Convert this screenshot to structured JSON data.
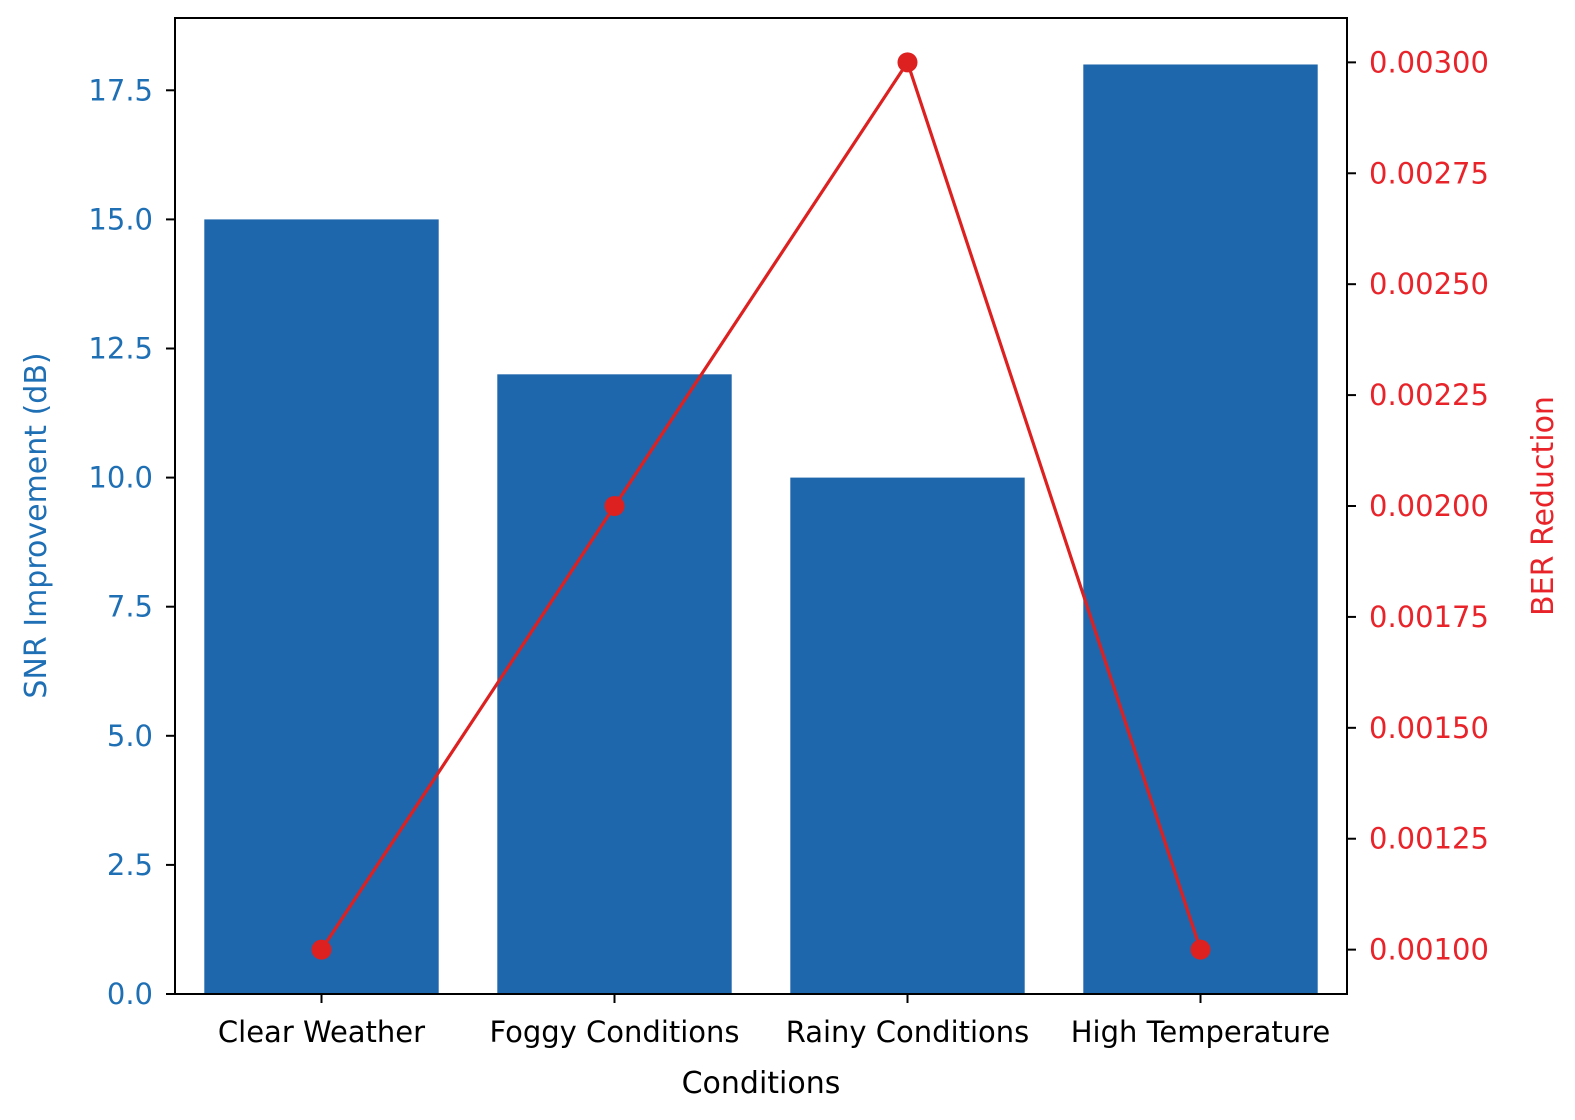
{
  "colors": {
    "bar": "#1f67ad",
    "line": "#dd2020",
    "left_axis_text": "#1f6fb5",
    "right_axis_text": "#e8242a",
    "axis": "#000000"
  },
  "chart_data": {
    "type": "bar",
    "title": "",
    "xlabel": "Conditions",
    "ylabel": "SNR Improvement (dB)",
    "y2label": "BER Reduction",
    "categories": [
      "Clear Weather",
      "Foggy Conditions",
      "Rainy Conditions",
      "High Temperature"
    ],
    "series": [
      {
        "kind": "bar",
        "axis": "left",
        "values": [
          15,
          12,
          10,
          18
        ]
      },
      {
        "kind": "line",
        "axis": "right",
        "marker": "circle",
        "values": [
          0.001,
          0.002,
          0.003,
          0.001
        ]
      }
    ],
    "ylim": [
      0,
      18.9
    ],
    "y2lim": [
      0.0009,
      0.0031
    ],
    "yticks": [
      "0.0",
      "2.5",
      "5.0",
      "7.5",
      "10.0",
      "12.5",
      "15.0",
      "17.5"
    ],
    "ytick_values": [
      0,
      2.5,
      5,
      7.5,
      10,
      12.5,
      15,
      17.5
    ],
    "y2ticks": [
      "0.00100",
      "0.00125",
      "0.00150",
      "0.00175",
      "0.00200",
      "0.00225",
      "0.00250",
      "0.00275",
      "0.00300"
    ],
    "y2tick_values": [
      0.001,
      0.00125,
      0.0015,
      0.00175,
      0.002,
      0.00225,
      0.0025,
      0.00275,
      0.003
    ],
    "grid": false,
    "legend": "none"
  }
}
